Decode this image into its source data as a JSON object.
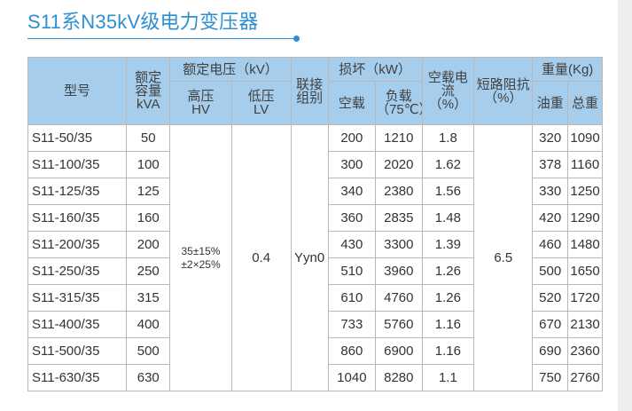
{
  "title": "S11系N35kV级电力变压器",
  "table": {
    "headers": {
      "model": "型号",
      "capacity": [
        "额定",
        "容量",
        "kVA"
      ],
      "rated_voltage": "额定电压（kV）",
      "hv": [
        "高压",
        "HV"
      ],
      "lv": [
        "低压",
        "LV"
      ],
      "connection": [
        "联接",
        "组别"
      ],
      "loss": "损坏（kW）",
      "no_load_loss": "空载",
      "load_loss": [
        "负载",
        "（75℃）"
      ],
      "no_load_current": [
        "空载电流",
        "（%）"
      ],
      "impedance": [
        "短路阻抗",
        "（%）"
      ],
      "weight": "重量(Kg)",
      "oil_weight": "油重",
      "total_weight": "总重"
    },
    "shared": {
      "hv": [
        "35±15%",
        "±2×25%"
      ],
      "lv": "0.4",
      "connection": "Yyn0",
      "impedance": "6.5"
    },
    "rows": [
      {
        "model": "S11-50/35",
        "capacity": "50",
        "no_load": "200",
        "load": "1210",
        "current": "1.8",
        "oil": "320",
        "total": "1090"
      },
      {
        "model": "S11-100/35",
        "capacity": "100",
        "no_load": "300",
        "load": "2020",
        "current": "1.62",
        "oil": "378",
        "total": "1160"
      },
      {
        "model": "S11-125/35",
        "capacity": "125",
        "no_load": "340",
        "load": "2380",
        "current": "1.56",
        "oil": "330",
        "total": "1250"
      },
      {
        "model": "S11-160/35",
        "capacity": "160",
        "no_load": "360",
        "load": "2835",
        "current": "1.48",
        "oil": "420",
        "total": "1290"
      },
      {
        "model": "S11-200/35",
        "capacity": "200",
        "no_load": "430",
        "load": "3300",
        "current": "1.39",
        "oil": "460",
        "total": "1480"
      },
      {
        "model": "S11-250/35",
        "capacity": "250",
        "no_load": "510",
        "load": "3960",
        "current": "1.26",
        "oil": "500",
        "total": "1650"
      },
      {
        "model": "S11-315/35",
        "capacity": "315",
        "no_load": "610",
        "load": "4760",
        "current": "1.26",
        "oil": "520",
        "total": "1720"
      },
      {
        "model": "S11-400/35",
        "capacity": "400",
        "no_load": "733",
        "load": "5760",
        "current": "1.16",
        "oil": "670",
        "total": "2130"
      },
      {
        "model": "S11-500/35",
        "capacity": "500",
        "no_load": "860",
        "load": "6900",
        "current": "1.16",
        "oil": "690",
        "total": "2360"
      },
      {
        "model": "S11-630/35",
        "capacity": "630",
        "no_load": "1040",
        "load": "8280",
        "current": "1.1",
        "oil": "750",
        "total": "2760"
      }
    ]
  },
  "colors": {
    "title": "#2f8fd0",
    "header_bg": "#a6ceec",
    "border": "#b9b9b9",
    "text": "#333333"
  }
}
